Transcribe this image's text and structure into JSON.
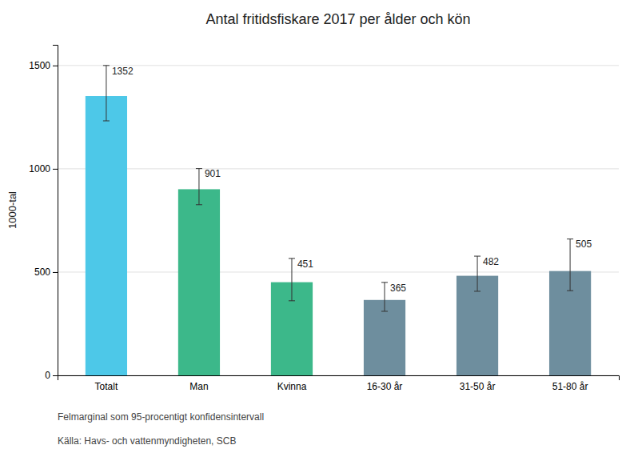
{
  "chart_data": {
    "type": "bar",
    "title": "Antal fritidsfiskare 2017 per ålder och kön",
    "categories": [
      "Totalt",
      "Man",
      "Kvinna",
      "16-30 år",
      "31-50 år",
      "51-80 år"
    ],
    "values": [
      1352,
      901,
      451,
      365,
      482,
      505
    ],
    "errors_upper": [
      148,
      100,
      115,
      85,
      95,
      155
    ],
    "errors_lower": [
      120,
      75,
      90,
      55,
      75,
      95
    ],
    "colors": [
      "#4DC8E8",
      "#3CB88A",
      "#3CB88A",
      "#6E8E9E",
      "#6E8E9E",
      "#6E8E9E"
    ],
    "ylabel": "1000-tal",
    "ylim": [
      0,
      1600
    ],
    "yticks": [
      0,
      500,
      1000,
      1500
    ],
    "grid": true,
    "data_labels": true,
    "annotations": [
      "Felmarginal som 95-procentigt konfidensintervall",
      "Källa: Havs- och vattenmyndigheten, SCB"
    ]
  }
}
